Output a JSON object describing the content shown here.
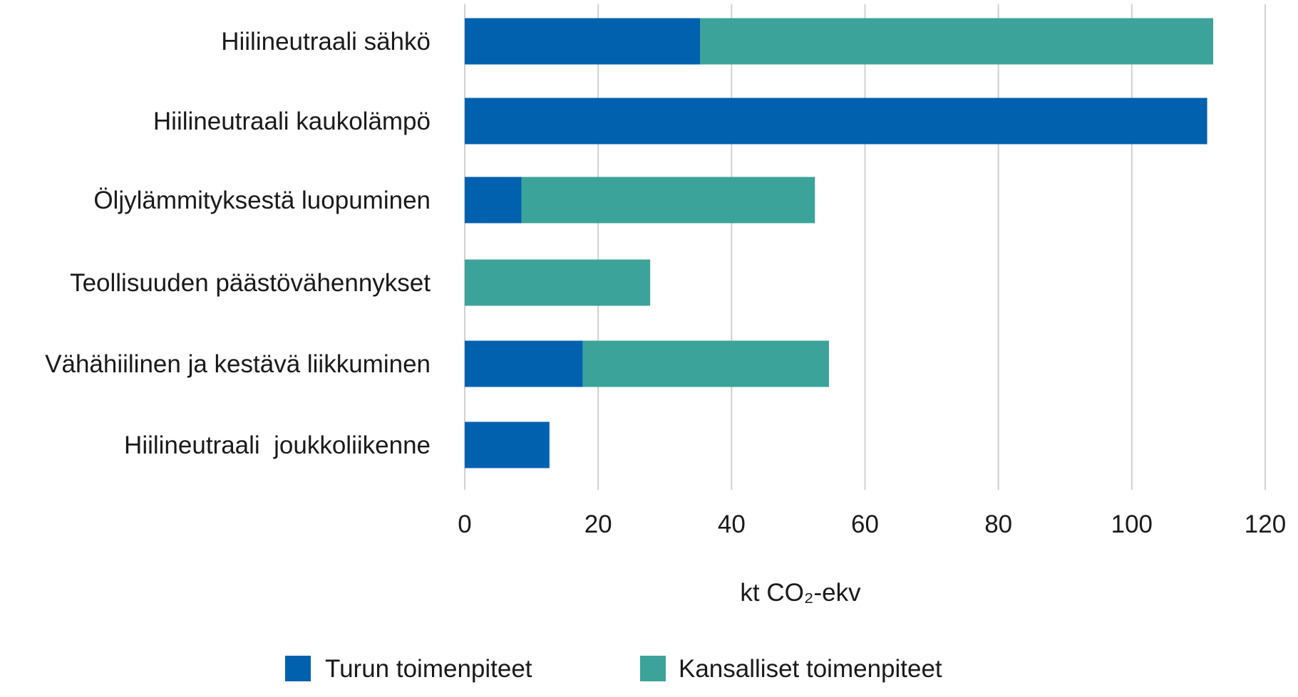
{
  "chart_data": {
    "type": "bar",
    "orientation": "horizontal",
    "stacked": true,
    "categories": [
      "Hiilineutraali sähkö",
      "Hiilineutraali kaukolämpö",
      "Öljylämmityksestä luopuminen",
      "Teollisuuden päästövähennykset",
      "Vähähiilinen ja kestävä liikkuminen",
      "Hiilineutraali  joukkoliikenne"
    ],
    "series": [
      {
        "name": "Turun toimenpiteet",
        "color": "#0161ae",
        "values": [
          35.3,
          111.3,
          8.5,
          0,
          17.7,
          12.7
        ]
      },
      {
        "name": "Kansalliset toimenpiteet",
        "color": "#3ca39a",
        "values": [
          76.9,
          0,
          44,
          27.8,
          36.9,
          0
        ]
      }
    ],
    "xlabel": "kt CO₂-ekv",
    "ylabel": "",
    "xlim": [
      0,
      120
    ],
    "xticks": [
      "0",
      "20",
      "40",
      "60",
      "80",
      "100",
      "120"
    ],
    "grid": true,
    "legend_position": "bottom"
  }
}
